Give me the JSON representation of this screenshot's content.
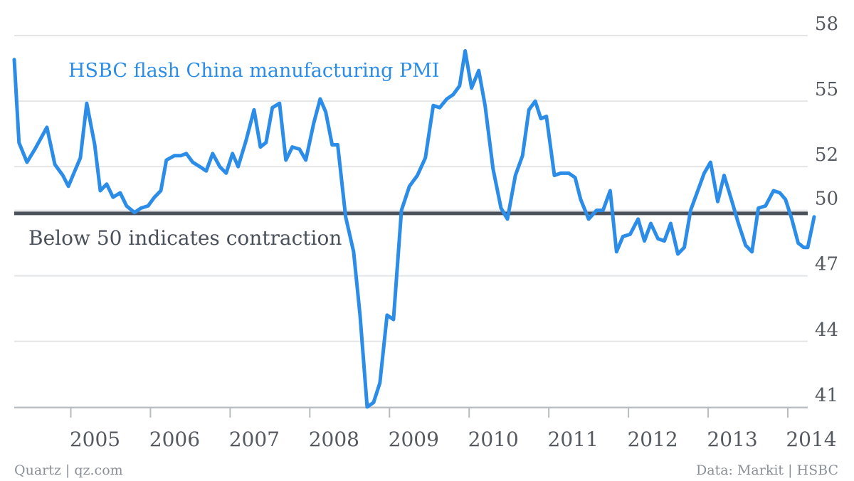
{
  "chart_data": {
    "type": "line",
    "title": "",
    "xlabel": "",
    "ylabel": "",
    "ylim": [
      40.8,
      58
    ],
    "y_ticks": [
      {
        "value": 58,
        "label": "58"
      },
      {
        "value": 55,
        "label": "55"
      },
      {
        "value": 52,
        "label": "52"
      },
      {
        "value": 50,
        "label": "50"
      },
      {
        "value": 47,
        "label": "47"
      },
      {
        "value": 44,
        "label": "44"
      },
      {
        "value": 41,
        "label": "41"
      }
    ],
    "x_ticks": [
      "2005",
      "2006",
      "2007",
      "2008",
      "2009",
      "2010",
      "2011",
      "2012",
      "2013",
      "2014"
    ],
    "x_range": [
      2004.29,
      2014.25
    ],
    "grid": true,
    "series": [
      {
        "name": "HSBC flash China manufacturing PMI",
        "color": "#2b8de8",
        "points": [
          [
            2004.29,
            56.9
          ],
          [
            2004.35,
            53.1
          ],
          [
            2004.45,
            52.2
          ],
          [
            2004.55,
            52.8
          ],
          [
            2004.7,
            53.8
          ],
          [
            2004.8,
            52.1
          ],
          [
            2004.9,
            51.6
          ],
          [
            2004.97,
            51.1
          ],
          [
            2005.05,
            51.8
          ],
          [
            2005.12,
            52.4
          ],
          [
            2005.2,
            54.9
          ],
          [
            2005.3,
            53.0
          ],
          [
            2005.37,
            50.9
          ],
          [
            2005.45,
            51.2
          ],
          [
            2005.53,
            50.6
          ],
          [
            2005.62,
            50.8
          ],
          [
            2005.7,
            50.2
          ],
          [
            2005.8,
            49.9
          ],
          [
            2005.88,
            50.1
          ],
          [
            2005.97,
            50.2
          ],
          [
            2006.05,
            50.6
          ],
          [
            2006.13,
            50.9
          ],
          [
            2006.2,
            52.3
          ],
          [
            2006.3,
            52.5
          ],
          [
            2006.38,
            52.5
          ],
          [
            2006.45,
            52.6
          ],
          [
            2006.53,
            52.2
          ],
          [
            2006.62,
            52.0
          ],
          [
            2006.7,
            51.8
          ],
          [
            2006.78,
            52.6
          ],
          [
            2006.87,
            52.0
          ],
          [
            2006.95,
            51.7
          ],
          [
            2007.03,
            52.6
          ],
          [
            2007.1,
            52.0
          ],
          [
            2007.2,
            53.2
          ],
          [
            2007.3,
            54.6
          ],
          [
            2007.38,
            52.9
          ],
          [
            2007.45,
            53.1
          ],
          [
            2007.53,
            54.7
          ],
          [
            2007.62,
            54.9
          ],
          [
            2007.7,
            52.3
          ],
          [
            2007.78,
            52.9
          ],
          [
            2007.87,
            52.8
          ],
          [
            2007.95,
            52.3
          ],
          [
            2008.05,
            54.0
          ],
          [
            2008.13,
            55.1
          ],
          [
            2008.2,
            54.5
          ],
          [
            2008.28,
            53.0
          ],
          [
            2008.35,
            53.0
          ],
          [
            2008.45,
            49.7
          ],
          [
            2008.55,
            48.1
          ],
          [
            2008.63,
            45.2
          ],
          [
            2008.72,
            41.0
          ],
          [
            2008.8,
            41.2
          ],
          [
            2008.88,
            42.1
          ],
          [
            2008.97,
            45.2
          ],
          [
            2009.05,
            45.0
          ],
          [
            2009.15,
            50.0
          ],
          [
            2009.25,
            51.1
          ],
          [
            2009.35,
            51.6
          ],
          [
            2009.45,
            52.4
          ],
          [
            2009.55,
            54.8
          ],
          [
            2009.63,
            54.7
          ],
          [
            2009.72,
            55.1
          ],
          [
            2009.8,
            55.3
          ],
          [
            2009.88,
            55.7
          ],
          [
            2009.95,
            57.3
          ],
          [
            2010.03,
            55.6
          ],
          [
            2010.12,
            56.4
          ],
          [
            2010.2,
            54.8
          ],
          [
            2010.3,
            51.9
          ],
          [
            2010.4,
            50.1
          ],
          [
            2010.48,
            49.6
          ],
          [
            2010.58,
            51.6
          ],
          [
            2010.67,
            52.5
          ],
          [
            2010.75,
            54.6
          ],
          [
            2010.83,
            55.0
          ],
          [
            2010.9,
            54.2
          ],
          [
            2010.97,
            54.3
          ],
          [
            2011.07,
            51.6
          ],
          [
            2011.15,
            51.7
          ],
          [
            2011.25,
            51.7
          ],
          [
            2011.33,
            51.5
          ],
          [
            2011.4,
            50.5
          ],
          [
            2011.5,
            49.6
          ],
          [
            2011.6,
            50.0
          ],
          [
            2011.68,
            50.0
          ],
          [
            2011.77,
            50.9
          ],
          [
            2011.85,
            48.1
          ],
          [
            2011.93,
            48.8
          ],
          [
            2012.02,
            48.9
          ],
          [
            2012.12,
            49.6
          ],
          [
            2012.2,
            48.6
          ],
          [
            2012.28,
            49.4
          ],
          [
            2012.37,
            48.7
          ],
          [
            2012.45,
            48.6
          ],
          [
            2012.53,
            49.4
          ],
          [
            2012.62,
            48.0
          ],
          [
            2012.7,
            48.3
          ],
          [
            2012.78,
            50.0
          ],
          [
            2012.87,
            50.9
          ],
          [
            2012.95,
            51.7
          ],
          [
            2013.03,
            52.2
          ],
          [
            2013.12,
            50.4
          ],
          [
            2013.2,
            51.6
          ],
          [
            2013.3,
            50.4
          ],
          [
            2013.38,
            49.4
          ],
          [
            2013.47,
            48.4
          ],
          [
            2013.55,
            48.1
          ],
          [
            2013.63,
            50.1
          ],
          [
            2013.72,
            50.2
          ],
          [
            2013.82,
            50.9
          ],
          [
            2013.9,
            50.8
          ],
          [
            2013.97,
            50.5
          ],
          [
            2014.05,
            49.6
          ],
          [
            2014.13,
            48.5
          ],
          [
            2014.2,
            48.3
          ],
          [
            2014.25,
            48.3
          ],
          [
            2014.33,
            49.7
          ]
        ]
      }
    ],
    "reference_line": {
      "value": 49.86,
      "color": "#4a515b"
    },
    "annotations": {
      "series_label": "HSBC flash China manufacturing PMI",
      "reference_label": "Below 50 indicates contraction"
    },
    "axis_color": "#b8bcc0",
    "grid_color": "#e3e5e7"
  },
  "footer": {
    "source_left": "Quartz | qz.com",
    "source_right": "Data: Markit | HSBC"
  }
}
